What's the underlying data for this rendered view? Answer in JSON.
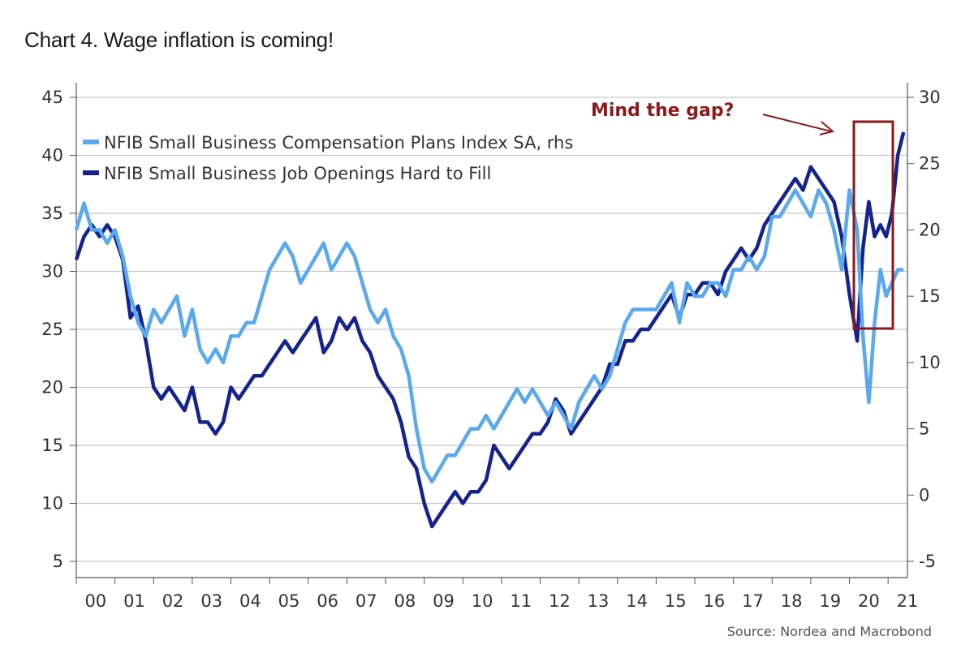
{
  "title": "Chart 4. Wage inflation is coming!",
  "source": "Source: Nordea and Macrobond",
  "chart_data": {
    "type": "line",
    "title": "Chart 4. Wage inflation is coming!",
    "left_axis": {
      "ylim": [
        5,
        45
      ],
      "ticks": [
        45,
        40,
        35,
        30,
        25,
        20,
        15,
        10,
        5
      ]
    },
    "right_axis": {
      "ylim": [
        -5,
        30
      ],
      "ticks": [
        30,
        25,
        20,
        15,
        10,
        5,
        0,
        -5
      ]
    },
    "x_axis": {
      "xlim": [
        2000,
        2021.5
      ],
      "ticks": [
        "00",
        "01",
        "02",
        "03",
        "04",
        "05",
        "06",
        "07",
        "08",
        "09",
        "10",
        "11",
        "12",
        "13",
        "14",
        "15",
        "16",
        "17",
        "18",
        "19",
        "20",
        "21"
      ]
    },
    "grid": "horizontal",
    "legend_position": "top-left",
    "series": [
      {
        "name": "NFIB Small Business Compensation Plans Index SA, rhs",
        "axis": "right",
        "color": "#5aa9ef",
        "x": [
          2000.0,
          2000.2,
          2000.4,
          2000.6,
          2000.8,
          2001.0,
          2001.2,
          2001.4,
          2001.6,
          2001.8,
          2002.0,
          2002.2,
          2002.4,
          2002.6,
          2002.8,
          2003.0,
          2003.2,
          2003.4,
          2003.6,
          2003.8,
          2004.0,
          2004.2,
          2004.4,
          2004.6,
          2004.8,
          2005.0,
          2005.2,
          2005.4,
          2005.6,
          2005.8,
          2006.0,
          2006.2,
          2006.4,
          2006.6,
          2006.8,
          2007.0,
          2007.2,
          2007.4,
          2007.6,
          2007.8,
          2008.0,
          2008.2,
          2008.4,
          2008.6,
          2008.8,
          2009.0,
          2009.2,
          2009.4,
          2009.6,
          2009.8,
          2010.0,
          2010.2,
          2010.4,
          2010.6,
          2010.8,
          2011.0,
          2011.2,
          2011.4,
          2011.6,
          2011.8,
          2012.0,
          2012.2,
          2012.4,
          2012.6,
          2012.8,
          2013.0,
          2013.2,
          2013.4,
          2013.6,
          2013.8,
          2014.0,
          2014.2,
          2014.4,
          2014.6,
          2014.8,
          2015.0,
          2015.2,
          2015.4,
          2015.6,
          2015.8,
          2016.0,
          2016.2,
          2016.4,
          2016.6,
          2016.8,
          2017.0,
          2017.2,
          2017.4,
          2017.6,
          2017.8,
          2018.0,
          2018.2,
          2018.4,
          2018.6,
          2018.8,
          2019.0,
          2019.2,
          2019.4,
          2019.6,
          2019.8,
          2020.0,
          2020.2,
          2020.35,
          2020.5,
          2020.65,
          2020.8,
          2020.95,
          2021.1,
          2021.25,
          2021.4
        ],
        "values": [
          20,
          22,
          20,
          20,
          19,
          20,
          18,
          15,
          13,
          12,
          14,
          13,
          14,
          15,
          12,
          14,
          11,
          10,
          11,
          10,
          12,
          12,
          13,
          13,
          15,
          17,
          18,
          19,
          18,
          16,
          17,
          18,
          19,
          17,
          18,
          19,
          18,
          16,
          14,
          13,
          14,
          12,
          11,
          9,
          5,
          2,
          1,
          2,
          3,
          3,
          4,
          5,
          5,
          6,
          5,
          6,
          7,
          8,
          7,
          8,
          7,
          6,
          7,
          6,
          5,
          7,
          8,
          9,
          8,
          9,
          11,
          13,
          14,
          14,
          14,
          14,
          15,
          16,
          13,
          16,
          15,
          15,
          16,
          16,
          15,
          17,
          17,
          18,
          17,
          18,
          21,
          21,
          22,
          23,
          22,
          21,
          23,
          22,
          20,
          17,
          23,
          20,
          12,
          7,
          13,
          17,
          15,
          16,
          17,
          17
        ]
      },
      {
        "name": "NFIB Small Business Job Openings Hard to Fill",
        "axis": "left",
        "color": "#15238e",
        "x": [
          2000.0,
          2000.2,
          2000.4,
          2000.6,
          2000.8,
          2001.0,
          2001.2,
          2001.4,
          2001.6,
          2001.8,
          2002.0,
          2002.2,
          2002.4,
          2002.6,
          2002.8,
          2003.0,
          2003.2,
          2003.4,
          2003.6,
          2003.8,
          2004.0,
          2004.2,
          2004.4,
          2004.6,
          2004.8,
          2005.0,
          2005.2,
          2005.4,
          2005.6,
          2005.8,
          2006.0,
          2006.2,
          2006.4,
          2006.6,
          2006.8,
          2007.0,
          2007.2,
          2007.4,
          2007.6,
          2007.8,
          2008.0,
          2008.2,
          2008.4,
          2008.6,
          2008.8,
          2009.0,
          2009.2,
          2009.4,
          2009.6,
          2009.8,
          2010.0,
          2010.2,
          2010.4,
          2010.6,
          2010.8,
          2011.0,
          2011.2,
          2011.4,
          2011.6,
          2011.8,
          2012.0,
          2012.2,
          2012.4,
          2012.6,
          2012.8,
          2013.0,
          2013.2,
          2013.4,
          2013.6,
          2013.8,
          2014.0,
          2014.2,
          2014.4,
          2014.6,
          2014.8,
          2015.0,
          2015.2,
          2015.4,
          2015.6,
          2015.8,
          2016.0,
          2016.2,
          2016.4,
          2016.6,
          2016.8,
          2017.0,
          2017.2,
          2017.4,
          2017.6,
          2017.8,
          2018.0,
          2018.2,
          2018.4,
          2018.6,
          2018.8,
          2019.0,
          2019.2,
          2019.4,
          2019.6,
          2019.8,
          2020.0,
          2020.2,
          2020.35,
          2020.5,
          2020.65,
          2020.8,
          2020.95,
          2021.1,
          2021.25,
          2021.4
        ],
        "values": [
          31,
          33,
          34,
          33,
          34,
          33,
          31,
          26,
          27,
          24,
          20,
          19,
          20,
          19,
          18,
          20,
          17,
          17,
          16,
          17,
          20,
          19,
          20,
          21,
          21,
          22,
          23,
          24,
          23,
          24,
          25,
          26,
          23,
          24,
          26,
          25,
          26,
          24,
          23,
          21,
          20,
          19,
          17,
          14,
          13,
          10,
          8,
          9,
          10,
          11,
          10,
          11,
          11,
          12,
          15,
          14,
          13,
          14,
          15,
          16,
          16,
          17,
          19,
          18,
          16,
          17,
          18,
          19,
          20,
          22,
          22,
          24,
          24,
          25,
          25,
          26,
          27,
          28,
          26,
          28,
          28,
          29,
          29,
          28,
          30,
          31,
          32,
          31,
          32,
          34,
          35,
          36,
          37,
          38,
          37,
          39,
          38,
          37,
          36,
          33,
          28,
          24,
          32,
          36,
          33,
          34,
          33,
          35,
          40,
          42
        ]
      }
    ],
    "annotations": [
      {
        "text": "Mind the gap?"
      }
    ]
  }
}
